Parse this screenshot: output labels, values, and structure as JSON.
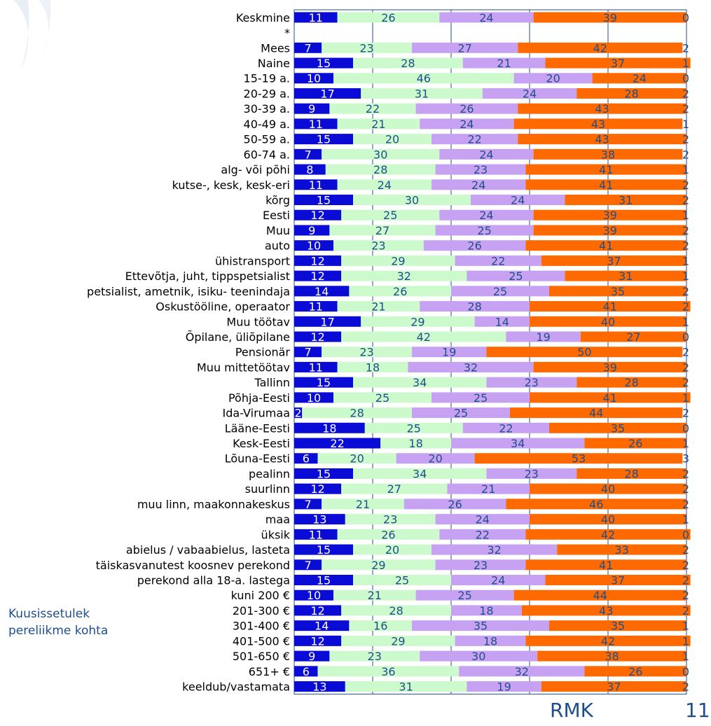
{
  "side_note": {
    "line1": "Kuusissetulek",
    "line2": "pereliikme kohta"
  },
  "footer": {
    "brand": "RMK",
    "page_number": "11"
  },
  "chart_data": {
    "type": "bar",
    "orientation": "horizontal",
    "stacked": "percent",
    "title": "",
    "xlabel": "",
    "ylabel": "",
    "xlim": [
      0,
      100
    ],
    "x_ticks": [
      "0%",
      "20%",
      "40%",
      "60%",
      "80%",
      "100%"
    ],
    "grid": true,
    "legend": "none",
    "categories": [
      "Keskmine",
      "*",
      "Mees",
      "Naine",
      "15-19 a.",
      "20-29 a.",
      "30-39 a.",
      "40-49 a.",
      "50-59 a.",
      "60-74 a.",
      "alg- või põhi",
      "kutse-, kesk, kesk-eri",
      "kõrg",
      "Eesti",
      "Muu",
      "auto",
      "ühistransport",
      "Ettevõtja, juht, tippspetsialist",
      "petsialist, ametnik, isiku- teenindaja",
      "Oskustööline, operaator",
      "Muu töötav",
      "Õpilane, üliõpilane",
      "Pensionär",
      "Muu mittetöötav",
      "Tallinn",
      "Põhja-Eesti",
      "Ida-Virumaa",
      "Lääne-Eesti",
      "Kesk-Eesti",
      "Lõuna-Eesti",
      "pealinn",
      "suurlinn",
      "muu linn, maakonnakeskus",
      "maa",
      "üksik",
      "abielus / vabaabielus, lasteta",
      "täiskasvanutest koosnev perekond",
      "perekond alla 18-a. lastega",
      "kuni 200 €",
      "201-300 €",
      "301-400 €",
      "401-500 €",
      "501-650 €",
      "651+ €",
      "keeldub/vastamata"
    ],
    "series": [
      {
        "color": "#0b0bd6",
        "label_color": "#ffffff",
        "values": [
          11,
          null,
          7,
          15,
          10,
          17,
          9,
          11,
          15,
          7,
          8,
          11,
          15,
          12,
          9,
          10,
          12,
          12,
          14,
          11,
          17,
          12,
          7,
          11,
          15,
          10,
          2,
          18,
          22,
          6,
          15,
          12,
          7,
          13,
          11,
          15,
          7,
          15,
          10,
          12,
          14,
          12,
          9,
          6,
          13
        ]
      },
      {
        "color": "#ccfacc",
        "label_color": "#1f4e8c",
        "values": [
          26,
          null,
          23,
          28,
          46,
          31,
          22,
          21,
          20,
          30,
          28,
          24,
          30,
          25,
          27,
          23,
          29,
          32,
          26,
          21,
          29,
          42,
          23,
          18,
          34,
          25,
          28,
          25,
          18,
          20,
          34,
          27,
          21,
          23,
          26,
          20,
          29,
          25,
          21,
          28,
          16,
          29,
          23,
          36,
          31
        ]
      },
      {
        "color": "#c8a2f2",
        "label_color": "#1f4e8c",
        "values": [
          24,
          null,
          27,
          21,
          20,
          24,
          26,
          24,
          22,
          24,
          23,
          24,
          24,
          24,
          25,
          26,
          22,
          25,
          25,
          28,
          14,
          19,
          19,
          32,
          23,
          25,
          25,
          22,
          34,
          20,
          23,
          21,
          26,
          24,
          22,
          32,
          23,
          24,
          25,
          18,
          35,
          18,
          30,
          32,
          19
        ]
      },
      {
        "color": "#ff6a00",
        "label_color": "#1f4e8c",
        "values": [
          39,
          null,
          42,
          37,
          24,
          28,
          43,
          43,
          43,
          38,
          41,
          41,
          31,
          39,
          39,
          41,
          37,
          31,
          35,
          41,
          40,
          27,
          50,
          39,
          28,
          41,
          44,
          35,
          26,
          53,
          28,
          40,
          46,
          40,
          42,
          33,
          41,
          37,
          44,
          43,
          35,
          42,
          38,
          26,
          37
        ]
      },
      {
        "color": "#ffffff",
        "label_color": "#1f4e8c",
        "values": [
          0,
          null,
          2,
          1,
          0,
          2,
          2,
          1,
          2,
          2,
          1,
          2,
          2,
          1,
          2,
          2,
          1,
          1,
          2,
          2,
          1,
          0,
          2,
          2,
          2,
          1,
          2,
          0,
          1,
          3,
          2,
          2,
          2,
          1,
          0,
          2,
          2,
          2,
          2,
          2,
          1,
          1,
          1,
          0,
          2
        ]
      }
    ]
  }
}
